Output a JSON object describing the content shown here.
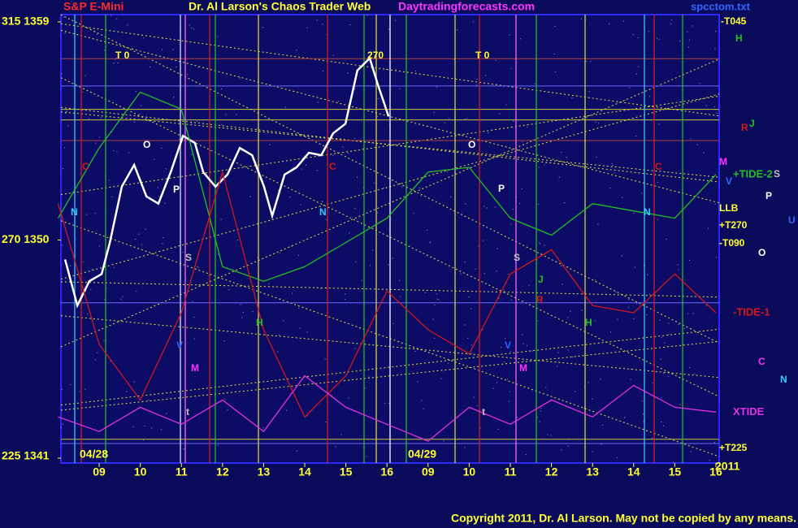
{
  "header": {
    "symbol": "S&P E-Mini",
    "title": "Dr. Al Larson's Chaos Trader Web",
    "site": "Daytradingforecasts.com",
    "file": "spcctom.txt"
  },
  "footer": "Copyright 2011, Dr. Al Larson. May not be copied by any means.",
  "dates": [
    "04/28",
    "04/29",
    "2011"
  ],
  "right_labels": [
    "-T045",
    "H",
    "R",
    "J",
    "M",
    "V",
    "S",
    "P",
    "LLB",
    "+T270",
    "U",
    "-T090",
    "O",
    "C",
    "N",
    "+T225"
  ],
  "annotations": [
    "T 0",
    "270",
    "T 0",
    "O",
    "P",
    "C",
    "N",
    "S",
    "V",
    "M",
    "H",
    "t",
    "O",
    "P",
    "C",
    "N",
    "S",
    "V",
    "M",
    "H",
    "J",
    "R",
    "t",
    "C",
    "N"
  ],
  "chart_data": [
    {
      "type": "line",
      "x": [
        0.17,
        0.47,
        0.76,
        1.06,
        1.26,
        1.55,
        1.85,
        2.15,
        2.44,
        2.74,
        3.04,
        3.33,
        3.53,
        3.83,
        4.12,
        4.42,
        4.72,
        5.01,
        5.21,
        5.51,
        5.8,
        6.1,
        6.4,
        6.69,
        6.99,
        7.28,
        7.58,
        7.78,
        8.04
      ],
      "series": [
        {
          "color": "#ffffff",
          "values": [
            1349.2,
            1347.3,
            1348.3,
            1348.6,
            1349.9,
            1352.2,
            1353.1,
            1351.8,
            1351.5,
            1352.8,
            1354.3,
            1354.0,
            1352.8,
            1352.2,
            1352.7,
            1353.8,
            1353.5,
            1352.2,
            1351.0,
            1352.7,
            1353.0,
            1353.6,
            1353.5,
            1354.4,
            1354.8,
            1357.0,
            1357.5,
            1356.4,
            1355.1
          ]
        }
      ],
      "xlim": [
        0.07,
        16.08
      ],
      "ylim": [
        1340.8,
        1359.3
      ],
      "xticks": [
        {
          "value": 1,
          "label": "09"
        },
        {
          "value": 2,
          "label": "10"
        },
        {
          "value": 3,
          "label": "11"
        },
        {
          "value": 4,
          "label": "12"
        },
        {
          "value": 5,
          "label": "13"
        },
        {
          "value": 6,
          "label": "14"
        },
        {
          "value": 7,
          "label": "15"
        },
        {
          "value": 8,
          "label": "16"
        },
        {
          "value": 9,
          "label": "09"
        },
        {
          "value": 10,
          "label": "10"
        },
        {
          "value": 11,
          "label": "11"
        },
        {
          "value": 12,
          "label": "12"
        },
        {
          "value": 13,
          "label": "13"
        },
        {
          "value": 14,
          "label": "14"
        },
        {
          "value": 15,
          "label": "15"
        },
        {
          "value": 16,
          "label": "16"
        }
      ],
      "yticks": [
        {
          "value": 1359,
          "label": "315 1359"
        },
        {
          "value": 1350,
          "label": "270 1350"
        },
        {
          "value": 1341,
          "label": "225 1341"
        }
      ]
    },
    {
      "type": "line",
      "x": [
        0,
        1,
        2,
        3,
        4,
        5,
        6,
        7,
        8,
        9,
        10,
        11,
        12,
        13,
        14,
        15,
        16
      ],
      "series": [
        {
          "name": "+TIDE-2",
          "color": "#22c022",
          "values": [
            1350.9,
            1353.8,
            1356.1,
            1355.4,
            1348.9,
            1348.3,
            1348.9,
            1349.9,
            1350.9,
            1352.8,
            1353.0,
            1350.9,
            1350.2,
            1351.5,
            1351.2,
            1350.9,
            1352.7
          ]
        },
        {
          "name": "-TIDE-1",
          "color": "#d01818",
          "values": [
            1351.5,
            1345.7,
            1343.4,
            1347.0,
            1352.8,
            1346.3,
            1342.7,
            1344.4,
            1347.9,
            1346.3,
            1345.3,
            1348.6,
            1349.6,
            1347.3,
            1347.0,
            1348.6,
            1347.0
          ]
        },
        {
          "name": "XTIDE",
          "color": "#e030e0",
          "values": [
            1342.7,
            1342.1,
            1343.1,
            1342.4,
            1343.4,
            1342.1,
            1344.4,
            1343.1,
            1342.4,
            1341.7,
            1343.1,
            1342.4,
            1343.4,
            1342.7,
            1344.0,
            1343.1,
            1342.9
          ]
        }
      ],
      "xlim": [
        0.07,
        16.08
      ],
      "ylim": [
        1340.8,
        1359.3
      ]
    }
  ]
}
